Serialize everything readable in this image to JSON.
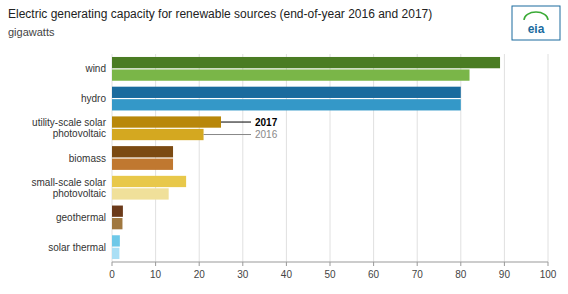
{
  "chart_data": {
    "type": "bar",
    "orientation": "horizontal",
    "title": "Electric generating capacity for renewable sources (end-of-year 2016 and 2017)",
    "subtitle": "gigawatts",
    "categories": [
      "wind",
      "hydro",
      "utility-scale solar\nphotovoltaic",
      "biomass",
      "small-scale solar\nphotovoltaic",
      "geothermal",
      "solar thermal"
    ],
    "series": [
      {
        "name": "2017",
        "values": [
          89,
          80,
          25,
          14,
          17,
          2.5,
          1.8
        ],
        "colors": [
          "#4a7c23",
          "#1a6b9e",
          "#b8870a",
          "#7b4a12",
          "#e8c84a",
          "#6b3a1a",
          "#6ec8e8"
        ]
      },
      {
        "name": "2016",
        "values": [
          82,
          80,
          21,
          14,
          13,
          2.4,
          1.7
        ],
        "colors": [
          "#7ab648",
          "#3498c8",
          "#d4a820",
          "#c07830",
          "#f0e09a",
          "#a07840",
          "#aadff5"
        ]
      }
    ],
    "xlim": [
      0,
      100
    ],
    "xticks": [
      0,
      10,
      20,
      30,
      40,
      50,
      60,
      70,
      80,
      90,
      100
    ],
    "grid": true,
    "annotations": [
      {
        "text": "eia"
      }
    ]
  }
}
